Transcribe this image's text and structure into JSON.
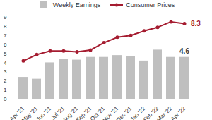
{
  "chart_data": {
    "type": "bar",
    "categories": [
      "Apr '21",
      "May '21",
      "Jun '21",
      "Jul '21",
      "Aug '21",
      "Sep '21",
      "Oct '21",
      "Nov '21",
      "Dec '21",
      "Jan '22",
      "Feb '22",
      "Mar '22",
      "Apr '22"
    ],
    "series": [
      {
        "name": "Weekly Earnings",
        "type": "bar",
        "color": "#bfbfbf",
        "values": [
          2.4,
          2.2,
          4.0,
          4.4,
          4.3,
          4.6,
          4.6,
          4.8,
          4.7,
          4.2,
          5.4,
          4.6,
          4.6
        ]
      },
      {
        "name": "Consumer Prices",
        "type": "line",
        "color": "#a51c30",
        "marker": "circle",
        "values": [
          4.2,
          4.9,
          5.3,
          5.3,
          5.2,
          5.4,
          6.2,
          6.8,
          7.0,
          7.5,
          7.9,
          8.5,
          8.3
        ]
      }
    ],
    "annotations": [
      {
        "series": "Consumer Prices",
        "x": "Apr '22",
        "y": 8.3,
        "text": "8.3"
      },
      {
        "series": "Weekly Earnings",
        "x": "Apr '22",
        "y": 4.6,
        "text": "4.6"
      }
    ],
    "ylim": [
      0,
      9
    ],
    "yticks": [
      0,
      1,
      2,
      3,
      4,
      5,
      6,
      7,
      8,
      9
    ],
    "grid": false,
    "legend": "top"
  }
}
